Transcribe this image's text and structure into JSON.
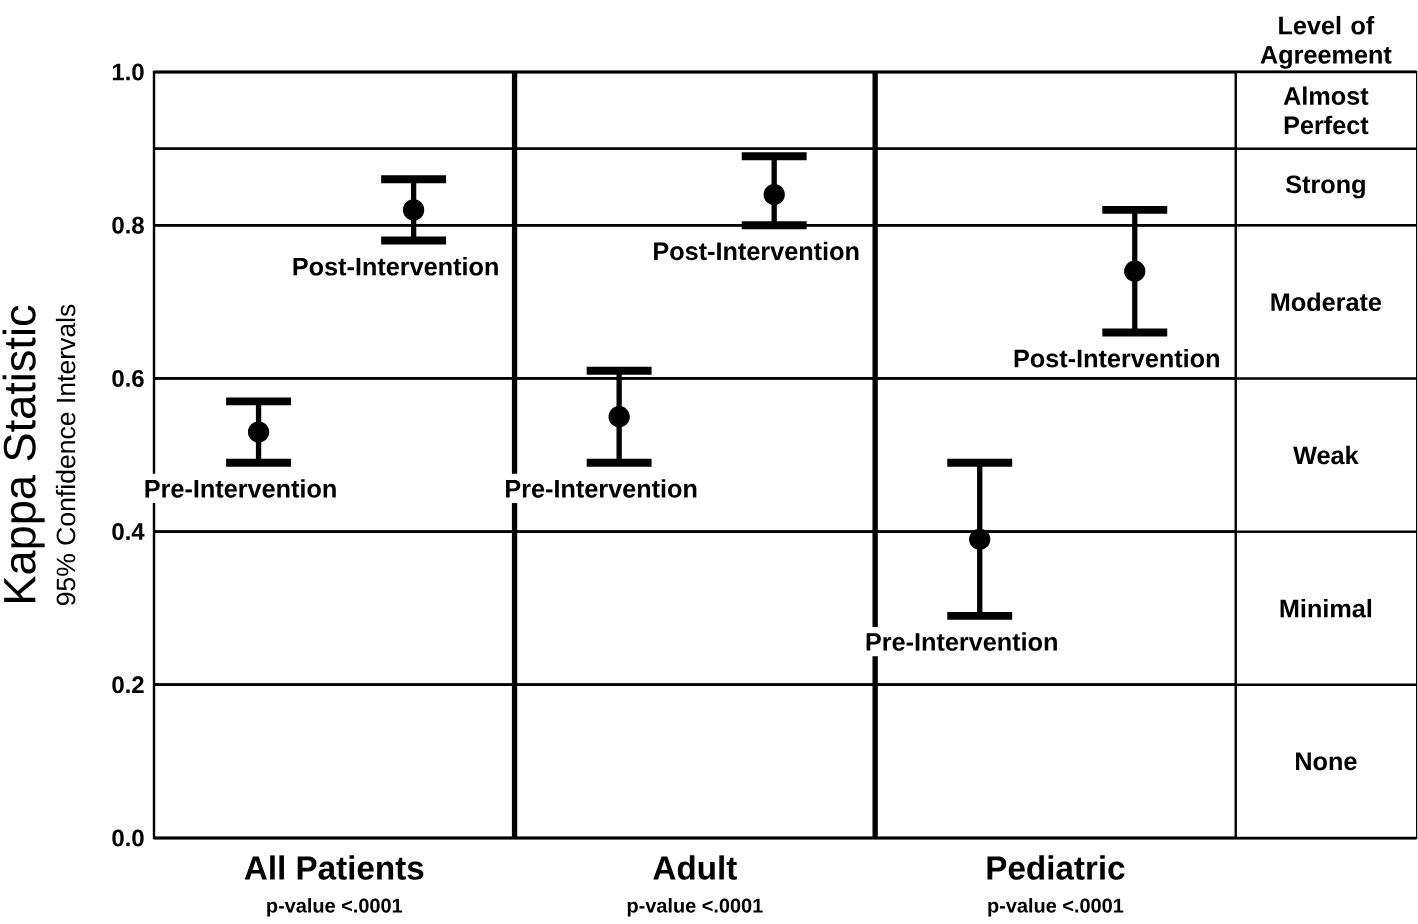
{
  "chart_data": {
    "type": "scatter",
    "categories": [
      "All Patients",
      "Adult",
      "Pediatric"
    ],
    "ylabel": "Kappa Statistic",
    "legend_title": "Level of Agreement",
    "marker": "circle",
    "ylim": [
      0,
      1
    ],
    "grid": "y",
    "yticks": [
      {
        "value": 0,
        "label": "0.0"
      },
      0.2,
      0.4,
      0.6,
      0.8,
      {
        "value": 1,
        "label": "1.0"
      }
    ],
    "series": [
      {
        "name": "Pre-Intervention",
        "color": "#000000",
        "values": [
          0.53,
          0.55,
          0.39
        ],
        "errors": [
          [
            0.49,
            0.57
          ],
          [
            0.49,
            0.61
          ],
          [
            0.29,
            0.49
          ]
        ]
      },
      {
        "name": "Post-Intervention",
        "color": "#000000",
        "values": [
          0.82,
          0.84,
          0.74
        ],
        "errors": [
          [
            0.78,
            0.86
          ],
          [
            0.8,
            0.89
          ],
          [
            0.66,
            0.82
          ]
        ]
      }
    ],
    "bands": [
      {
        "axis": "y",
        "from": 0,
        "to": 0.2,
        "label": "None",
        "color": "#ffffff"
      },
      {
        "axis": "y",
        "from": 0.2,
        "to": 0.4,
        "label": "Minimal",
        "color": "#ffffff"
      },
      {
        "axis": "y",
        "from": 0.4,
        "to": 0.6,
        "label": "Weak",
        "color": "#ffffff"
      },
      {
        "axis": "y",
        "from": 0.6,
        "to": 0.8,
        "label": "Moderate",
        "color": "#ffffff"
      },
      {
        "axis": "y",
        "from": 0.8,
        "to": 0.9,
        "label": "Strong",
        "color": "#ffffff"
      },
      {
        "axis": "y",
        "from": 0.9,
        "to": 1.0,
        "label": "Almost Perfect",
        "color": "#ffffff"
      }
    ],
    "annotations": [
      "95% Confidence Intervals",
      "p-value <.0001",
      "p-value <.0001",
      "p-value <.0001"
    ]
  }
}
